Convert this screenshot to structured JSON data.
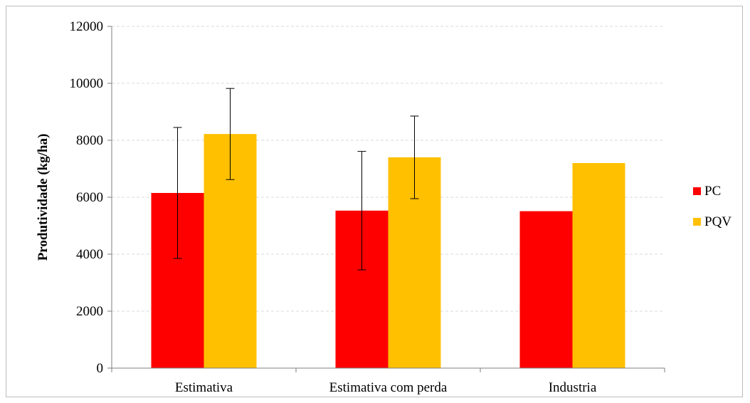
{
  "chart_data": {
    "type": "bar",
    "title": "",
    "xlabel": "",
    "ylabel": "Produtividade (kg/ha)",
    "ylim": [
      0,
      12000
    ],
    "yticks": [
      0,
      2000,
      4000,
      6000,
      8000,
      10000,
      12000
    ],
    "ytick_labels": [
      "0",
      "2000",
      "4000",
      "6000",
      "8000",
      "10000",
      "12000"
    ],
    "grid": true,
    "legend_position": "right",
    "categories": [
      "Estimativa",
      "Estimativa com perda",
      "Industria"
    ],
    "series": [
      {
        "name": "PC",
        "color": "#ff0000",
        "values": [
          6150,
          5530,
          5510
        ],
        "error": [
          2300,
          2080,
          null
        ]
      },
      {
        "name": "PQV",
        "color": "#ffc000",
        "values": [
          8220,
          7400,
          7200
        ],
        "error": [
          1600,
          1450,
          null
        ]
      }
    ]
  }
}
